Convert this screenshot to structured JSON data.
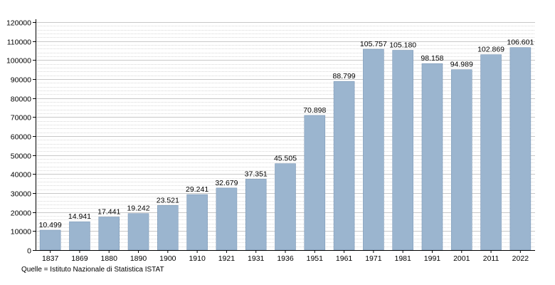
{
  "chart_data": {
    "type": "bar",
    "categories": [
      "1837",
      "1869",
      "1880",
      "1890",
      "1900",
      "1910",
      "1921",
      "1931",
      "1936",
      "1951",
      "1961",
      "1971",
      "1981",
      "1991",
      "2001",
      "2011",
      "2022"
    ],
    "values": [
      10499,
      14941,
      17441,
      19242,
      23521,
      29241,
      32679,
      37351,
      45505,
      70898,
      88799,
      105757,
      105180,
      98158,
      94989,
      102869,
      106601
    ],
    "value_labels": [
      "10.499",
      "14.941",
      "17.441",
      "19.242",
      "23.521",
      "29.241",
      "32.679",
      "37.351",
      "45.505",
      "70.898",
      "88.799",
      "105.757",
      "105.180",
      "98.158",
      "94.989",
      "102.869",
      "106.601"
    ],
    "y_ticks": [
      0,
      10000,
      20000,
      30000,
      40000,
      50000,
      60000,
      70000,
      80000,
      90000,
      100000,
      110000,
      120000
    ],
    "ylim": [
      0,
      120000
    ],
    "grid": true,
    "bar_color": "#9bb5cf",
    "bar_edge_color": "#7f9ab8",
    "title": "",
    "xlabel": "",
    "ylabel": ""
  },
  "source_text": "Quelle = Istituto Nazionale di Statistica ISTAT"
}
